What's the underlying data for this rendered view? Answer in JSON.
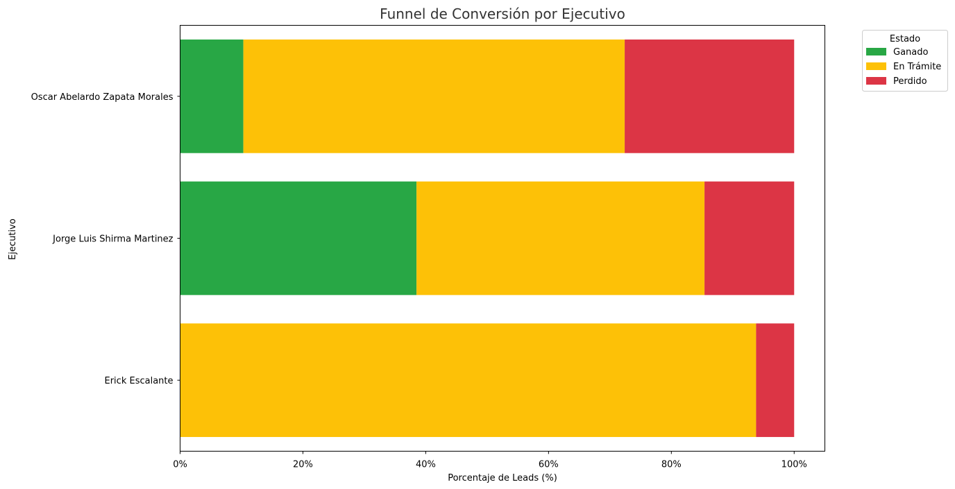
{
  "chart_data": {
    "type": "bar",
    "orientation": "horizontal",
    "stacked": true,
    "title": "Funnel de Conversión por Ejecutivo",
    "xlabel": "Porcentaje de Leads (%)",
    "ylabel": "Ejecutivo",
    "xlim": [
      0,
      105
    ],
    "xticks": [
      0,
      20,
      40,
      60,
      80,
      100
    ],
    "xtick_labels": [
      "0%",
      "20%",
      "40%",
      "60%",
      "80%",
      "100%"
    ],
    "categories": [
      "Oscar Abelardo Zapata Morales",
      "Jorge Luis Shirma Martinez",
      "Erick Escalante"
    ],
    "series": [
      {
        "name": "Ganado",
        "color": "#28a745",
        "values": [
          10.3,
          38.5,
          0
        ]
      },
      {
        "name": "En Trámite",
        "color": "#fdc107",
        "values": [
          62.1,
          46.9,
          93.8
        ]
      },
      {
        "name": "Perdido",
        "color": "#dc3545",
        "values": [
          27.6,
          14.6,
          6.2
        ]
      }
    ],
    "legend": {
      "title": "Estado",
      "placement": "outside-top-right"
    },
    "grid": false
  }
}
